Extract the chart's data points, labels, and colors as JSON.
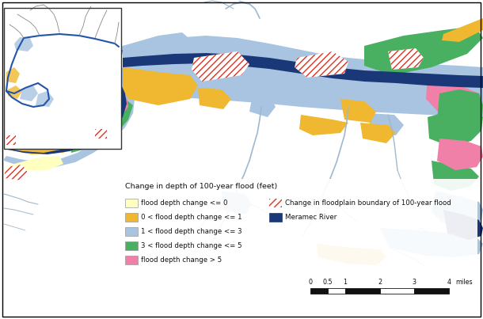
{
  "background_color": "#ffffff",
  "border_color": "#000000",
  "c_depth0": "#ffffc0",
  "c_depth1": "#f0b830",
  "c_depth3": "#a8c4e0",
  "c_depth5": "#48b060",
  "c_depth5p": "#f080a8",
  "c_river": "#1a3878",
  "c_trib": "#a0b8cc",
  "c_hatch_edge": "#e03020",
  "legend": {
    "header": "Change in depth of 100-year flood (feet)",
    "items": [
      {
        "label": "flood depth change <= 0",
        "color": "#ffffc0",
        "edge": "#999999"
      },
      {
        "label": "0 < flood depth change <= 1",
        "color": "#f0b830",
        "edge": "#999999"
      },
      {
        "label": "1 < flood depth change <= 3",
        "color": "#a8c4e0",
        "edge": "#999999"
      },
      {
        "label": "3 < flood depth change <= 5",
        "color": "#48b060",
        "edge": "#999999"
      },
      {
        "label": "flood depth change > 5",
        "color": "#f080a8",
        "edge": "#999999"
      }
    ],
    "right_items": [
      {
        "label": "Change in floodplain boundary of 100-year flood",
        "type": "hatch"
      },
      {
        "label": "Meramec River",
        "color": "#1a3878"
      }
    ]
  },
  "scalebar": {
    "segments": [
      0,
      0.5,
      1,
      2,
      3,
      4
    ],
    "label": "miles",
    "colors": [
      "#111111",
      "#ffffff",
      "#111111",
      "#ffffff",
      "#111111"
    ]
  },
  "figsize": [
    6.1,
    4.03
  ],
  "dpi": 100
}
